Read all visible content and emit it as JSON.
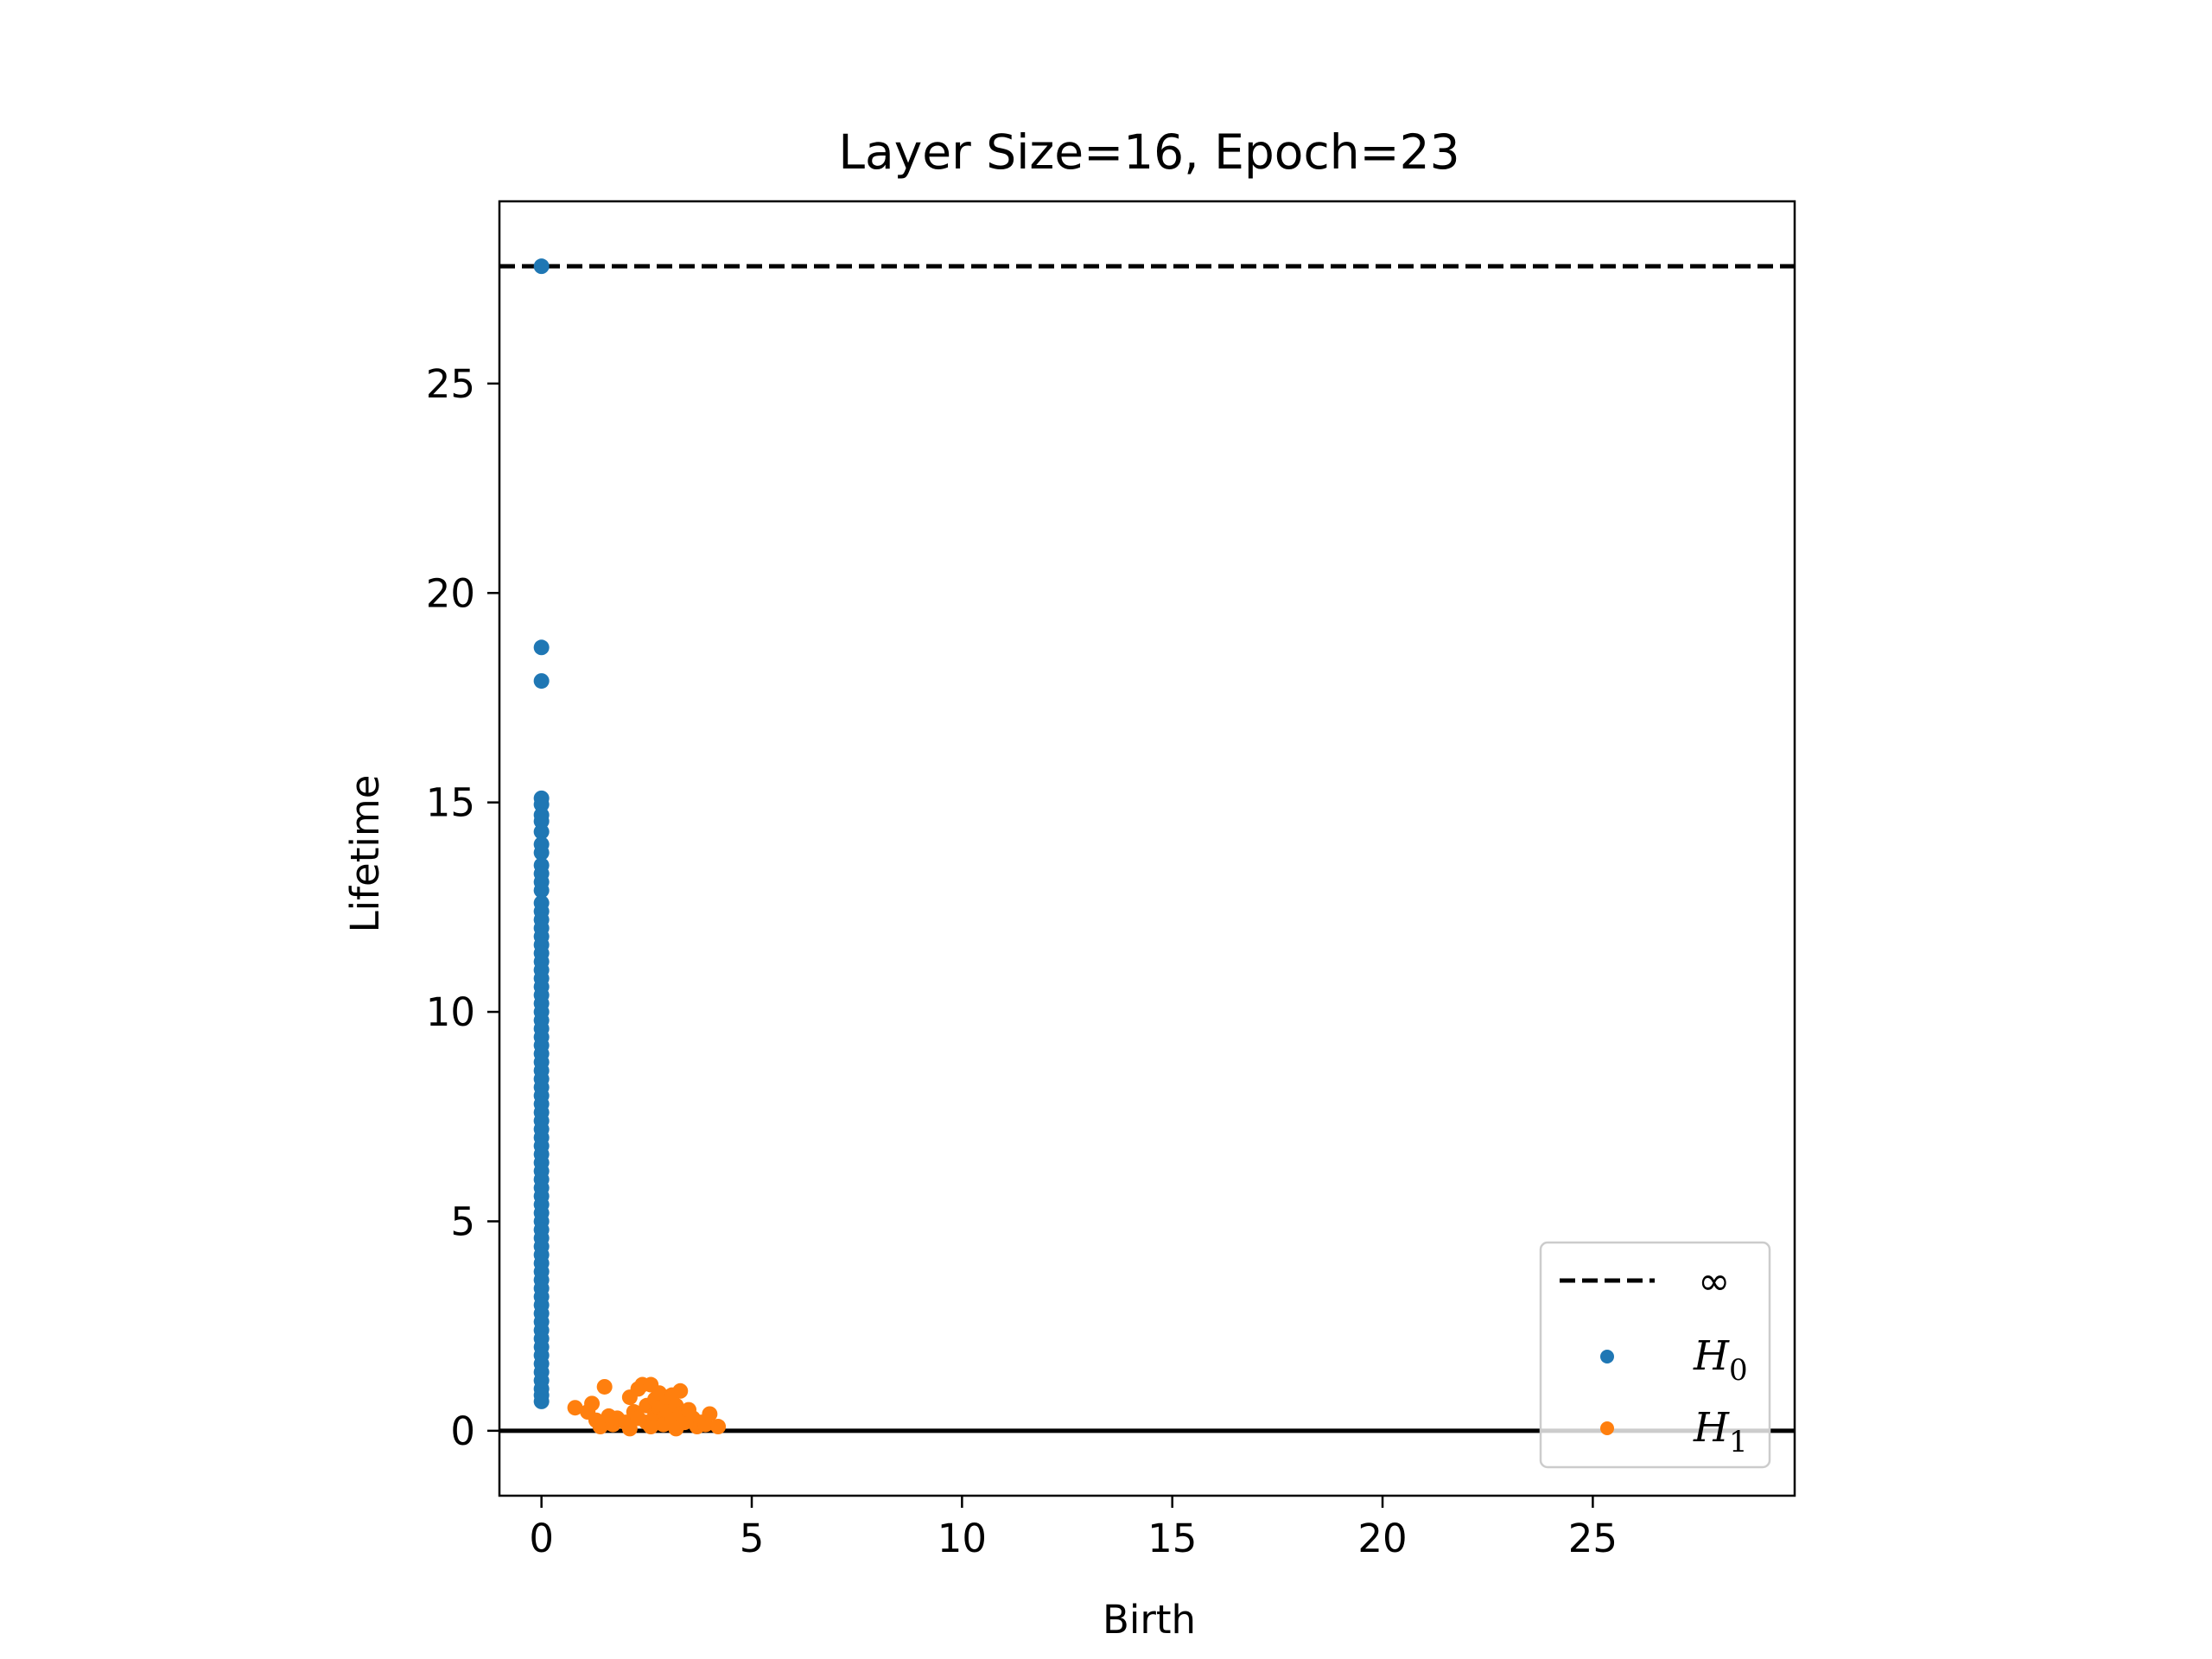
{
  "chart_data": {
    "type": "scatter",
    "title": "Layer Size=16, Epoch=23",
    "xlabel": "Birth",
    "ylabel": "Lifetime",
    "xlim": [
      -1,
      29.8
    ],
    "ylim": [
      -1.55,
      29.35
    ],
    "xticks": [
      0,
      5,
      10,
      15,
      20,
      25
    ],
    "yticks": [
      0,
      5,
      10,
      15,
      20,
      25
    ],
    "grid": false,
    "legend_position": "lower-right",
    "infinity_line": {
      "label": "∞",
      "y": 27.8,
      "color": "#000000",
      "style": "dashed"
    },
    "zero_line": {
      "y": 0,
      "color": "#000000"
    },
    "series": [
      {
        "name": "H0",
        "name_base": "H",
        "name_sub": "0",
        "color": "#1f77b4",
        "points": [
          [
            0,
            27.8
          ],
          [
            0,
            18.7
          ],
          [
            0,
            17.9
          ],
          [
            0,
            15.1
          ],
          [
            0,
            14.95
          ],
          [
            0,
            14.7
          ],
          [
            0,
            14.55
          ],
          [
            0,
            14.3
          ],
          [
            0,
            14.0
          ],
          [
            0,
            13.8
          ],
          [
            0,
            13.5
          ],
          [
            0,
            13.3
          ],
          [
            0,
            13.1
          ],
          [
            0,
            12.9
          ],
          [
            0,
            12.6
          ],
          [
            0,
            12.4
          ],
          [
            0,
            12.2
          ],
          [
            0,
            12.0
          ],
          [
            0,
            11.8
          ],
          [
            0,
            11.6
          ],
          [
            0,
            11.4
          ],
          [
            0,
            11.2
          ],
          [
            0,
            11.0
          ],
          [
            0,
            10.8
          ],
          [
            0,
            10.6
          ],
          [
            0,
            10.4
          ],
          [
            0,
            10.2
          ],
          [
            0,
            10.0
          ],
          [
            0,
            9.8
          ],
          [
            0,
            9.6
          ],
          [
            0,
            9.4
          ],
          [
            0,
            9.2
          ],
          [
            0,
            9.0
          ],
          [
            0,
            8.8
          ],
          [
            0,
            8.6
          ],
          [
            0,
            8.4
          ],
          [
            0,
            8.2
          ],
          [
            0,
            8.0
          ],
          [
            0,
            7.8
          ],
          [
            0,
            7.6
          ],
          [
            0,
            7.4
          ],
          [
            0,
            7.2
          ],
          [
            0,
            7.0
          ],
          [
            0,
            6.8
          ],
          [
            0,
            6.6
          ],
          [
            0,
            6.4
          ],
          [
            0,
            6.2
          ],
          [
            0,
            6.0
          ],
          [
            0,
            5.8
          ],
          [
            0,
            5.6
          ],
          [
            0,
            5.4
          ],
          [
            0,
            5.2
          ],
          [
            0,
            5.0
          ],
          [
            0,
            4.8
          ],
          [
            0,
            4.6
          ],
          [
            0,
            4.4
          ],
          [
            0,
            4.2
          ],
          [
            0,
            4.0
          ],
          [
            0,
            3.8
          ],
          [
            0,
            3.6
          ],
          [
            0,
            3.4
          ],
          [
            0,
            3.2
          ],
          [
            0,
            3.0
          ],
          [
            0,
            2.8
          ],
          [
            0,
            2.6
          ],
          [
            0,
            2.4
          ],
          [
            0,
            2.2
          ],
          [
            0,
            2.0
          ],
          [
            0,
            1.8
          ],
          [
            0,
            1.6
          ],
          [
            0,
            1.4
          ],
          [
            0,
            1.2
          ],
          [
            0,
            1.0
          ],
          [
            0,
            0.85
          ],
          [
            0,
            0.7
          ]
        ]
      },
      {
        "name": "H1",
        "name_base": "H",
        "name_sub": "1",
        "color": "#ff7f0e",
        "points": [
          [
            0.8,
            0.55
          ],
          [
            1.1,
            0.45
          ],
          [
            1.2,
            0.65
          ],
          [
            1.3,
            0.25
          ],
          [
            1.4,
            0.1
          ],
          [
            1.5,
            1.05
          ],
          [
            1.6,
            0.35
          ],
          [
            1.7,
            0.15
          ],
          [
            1.8,
            0.3
          ],
          [
            2.0,
            0.2
          ],
          [
            2.1,
            0.05
          ],
          [
            2.1,
            0.8
          ],
          [
            2.2,
            0.45
          ],
          [
            2.3,
            1.0
          ],
          [
            2.3,
            0.3
          ],
          [
            2.4,
            1.1
          ],
          [
            2.5,
            0.6
          ],
          [
            2.5,
            0.2
          ],
          [
            2.6,
            0.1
          ],
          [
            2.6,
            1.1
          ],
          [
            2.7,
            0.75
          ],
          [
            2.7,
            0.4
          ],
          [
            2.8,
            0.9
          ],
          [
            2.8,
            0.55
          ],
          [
            2.9,
            0.3
          ],
          [
            2.9,
            0.15
          ],
          [
            3.0,
            0.7
          ],
          [
            3.0,
            0.45
          ],
          [
            3.1,
            0.85
          ],
          [
            3.1,
            0.25
          ],
          [
            3.2,
            0.6
          ],
          [
            3.2,
            0.05
          ],
          [
            3.3,
            0.95
          ],
          [
            3.3,
            0.4
          ],
          [
            3.4,
            0.2
          ],
          [
            3.5,
            0.5
          ],
          [
            3.6,
            0.3
          ],
          [
            3.7,
            0.1
          ],
          [
            3.8,
            0.2
          ],
          [
            3.9,
            0.15
          ],
          [
            4.0,
            0.4
          ],
          [
            4.2,
            0.1
          ]
        ]
      }
    ]
  }
}
